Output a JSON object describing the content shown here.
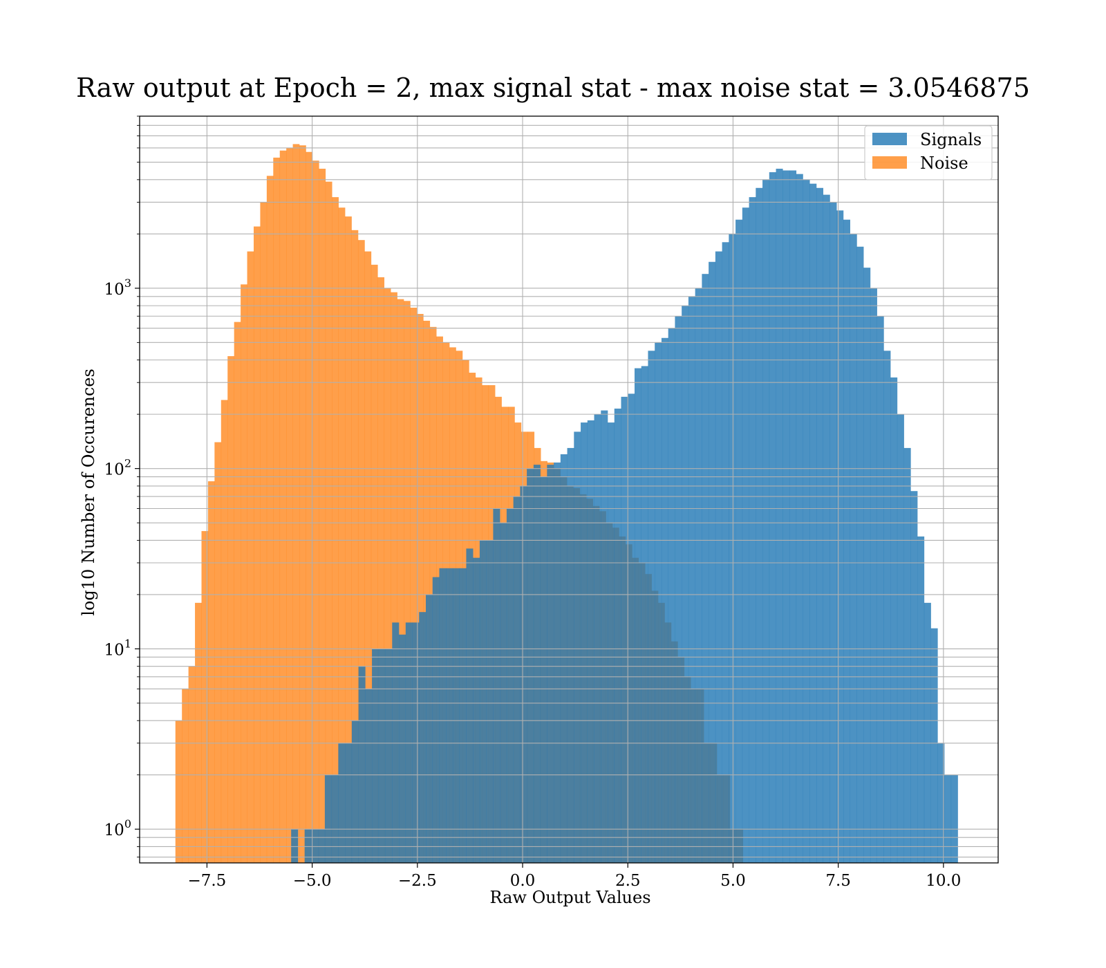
{
  "chart_data": {
    "type": "bar",
    "chart_kind": "histogram",
    "title": "Raw output at Epoch = 2, max signal stat - max noise stat = 3.0546875",
    "xlabel": "Raw Output Values",
    "ylabel": "log10 Number of Occurences",
    "yscale": "log",
    "xlim": [
      -9.1,
      11.3
    ],
    "ylim": [
      0.65,
      9000
    ],
    "grid": true,
    "legend_position": "upper right",
    "x_ticks": [
      {
        "value": -7.5,
        "label": "−7.5"
      },
      {
        "value": -5.0,
        "label": "−5.0"
      },
      {
        "value": -2.5,
        "label": "−2.5"
      },
      {
        "value": 0.0,
        "label": "0.0"
      },
      {
        "value": 2.5,
        "label": "2.5"
      },
      {
        "value": 5.0,
        "label": "5.0"
      },
      {
        "value": 7.5,
        "label": "7.5"
      },
      {
        "value": 10.0,
        "label": "10.0"
      }
    ],
    "y_ticks": [
      {
        "value": 1,
        "base": "10",
        "exp": "0"
      },
      {
        "value": 10,
        "base": "10",
        "exp": "1"
      },
      {
        "value": 100,
        "base": "10",
        "exp": "2"
      },
      {
        "value": 1000,
        "base": "10",
        "exp": "3"
      }
    ],
    "series": [
      {
        "name": "Noise",
        "color": "#ff7f0e",
        "opacity": 0.75,
        "bin_start": -8.25,
        "bin_width": 0.155,
        "counts": [
          4,
          6,
          8,
          18,
          45,
          85,
          140,
          240,
          420,
          650,
          1050,
          1600,
          2200,
          3000,
          4200,
          5300,
          5800,
          6000,
          6300,
          6200,
          5700,
          5100,
          4600,
          3900,
          3200,
          2800,
          2500,
          2100,
          1850,
          1600,
          1350,
          1150,
          1000,
          950,
          870,
          850,
          780,
          720,
          660,
          610,
          540,
          500,
          470,
          450,
          400,
          340,
          320,
          290,
          290,
          250,
          220,
          220,
          180,
          160,
          160,
          130,
          110,
          108,
          100,
          90,
          80,
          78,
          72,
          68,
          62,
          58,
          50,
          47,
          42,
          38,
          32,
          30,
          26,
          21,
          18,
          14,
          11,
          9,
          7,
          6,
          6,
          3,
          3,
          2,
          2,
          1,
          1
        ]
      },
      {
        "name": "Signals",
        "color": "#1f77b4",
        "opacity": 0.8,
        "bin_start": -5.5,
        "bin_width": 0.16,
        "counts": [
          1,
          0,
          1,
          1,
          1,
          2,
          2,
          3,
          3,
          4,
          8,
          6,
          10,
          10,
          10,
          14,
          12,
          14,
          14,
          16,
          20,
          25,
          28,
          28,
          28,
          28,
          36,
          32,
          40,
          40,
          60,
          50,
          60,
          70,
          80,
          100,
          105,
          90,
          105,
          108,
          120,
          130,
          160,
          180,
          185,
          200,
          210,
          180,
          215,
          250,
          260,
          360,
          370,
          450,
          500,
          530,
          600,
          700,
          800,
          900,
          1000,
          1200,
          1400,
          1600,
          1800,
          2000,
          2400,
          2800,
          3200,
          3600,
          4000,
          4400,
          4600,
          4500,
          4500,
          4300,
          4000,
          3800,
          3600,
          3300,
          3000,
          2700,
          2400,
          2000,
          1700,
          1300,
          1000,
          700,
          450,
          320,
          200,
          130,
          75,
          42,
          18,
          13,
          3,
          2,
          2
        ]
      }
    ],
    "legend": [
      {
        "name": "Signals",
        "color": "#1f77b4"
      },
      {
        "name": "Noise",
        "color": "#ff7f0e"
      }
    ]
  }
}
